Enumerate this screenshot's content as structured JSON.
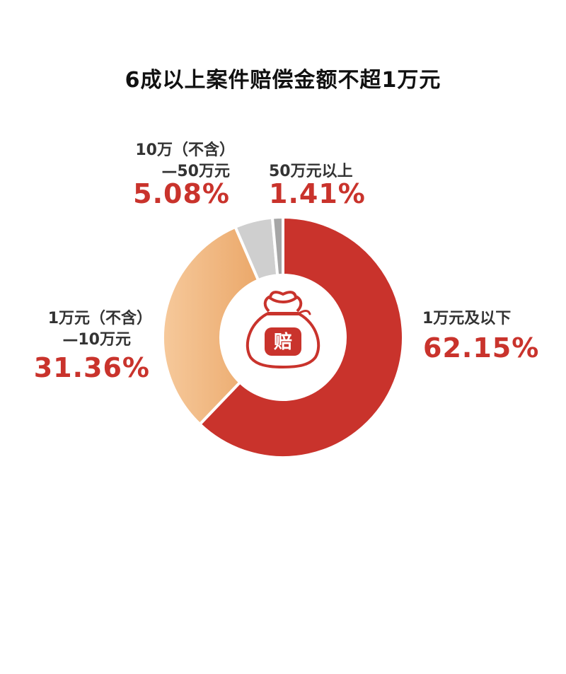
{
  "title": "6成以上案件赔偿金额不超1万元",
  "center_icon_text": "赔",
  "colors": {
    "red": "#c9332c",
    "orange_light": "#f6c99b",
    "orange_dark": "#ecaa6a",
    "gray_light": "#cfcfcf",
    "gray_dark": "#a6a6a6",
    "label_text": "#333333"
  },
  "chart_data": {
    "type": "pie",
    "title": "6成以上案件赔偿金额不超1万元",
    "slices": [
      {
        "label_lines": [
          "1万元及以下"
        ],
        "value": 62.15,
        "display": "62.15%",
        "color": "#c9332c"
      },
      {
        "label_lines": [
          "1万元（不含）",
          "—10万元"
        ],
        "value": 31.36,
        "display": "31.36%",
        "color": "#f2bc86"
      },
      {
        "label_lines": [
          "10万（不含）",
          "—50万元"
        ],
        "value": 5.08,
        "display": "5.08%",
        "color": "#cfcfcf"
      },
      {
        "label_lines": [
          "50万元以上"
        ],
        "value": 1.41,
        "display": "1.41%",
        "color": "#a6a6a6"
      }
    ]
  }
}
